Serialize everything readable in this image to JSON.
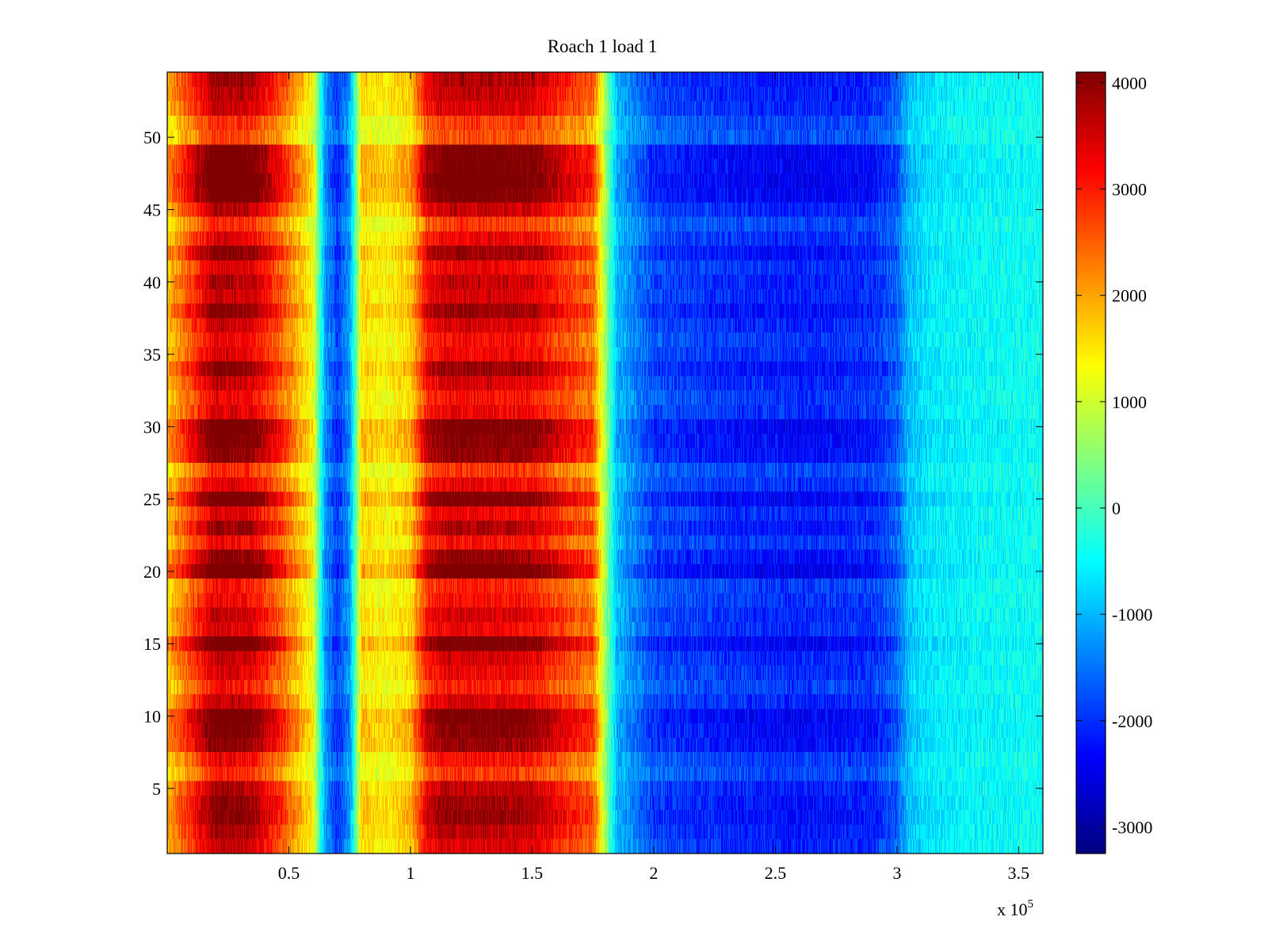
{
  "chart_data": {
    "type": "heatmap",
    "title": "Roach 1 load 1",
    "xlabel": "",
    "ylabel": "",
    "x_exponent_label": "x 10",
    "x_exponent_power": "5",
    "xlim": [
      0,
      3.6
    ],
    "ylim": [
      0.5,
      54.5
    ],
    "x_ticks": [
      0.5,
      1,
      1.5,
      2,
      2.5,
      3,
      3.5
    ],
    "x_tick_labels": [
      "0.5",
      "1",
      "1.5",
      "2",
      "2.5",
      "3",
      "3.5"
    ],
    "y_ticks": [
      5,
      10,
      15,
      20,
      25,
      30,
      35,
      40,
      45,
      50
    ],
    "y_tick_labels": [
      "5",
      "10",
      "15",
      "20",
      "25",
      "30",
      "35",
      "40",
      "45",
      "50"
    ],
    "rows": 54,
    "colorbar": {
      "clim": [
        -3250,
        4100
      ],
      "ticks": [
        -3000,
        -2000,
        -1000,
        0,
        1000,
        2000,
        3000,
        4000
      ],
      "tick_labels": [
        "-3000",
        "-2000",
        "-1000",
        "0",
        "1000",
        "2000",
        "3000",
        "4000"
      ],
      "colormap": "jet"
    },
    "column_profile_x": [
      0.0,
      0.2,
      0.35,
      0.45,
      0.6,
      0.65,
      0.7,
      0.75,
      0.8,
      0.9,
      1.0,
      1.07,
      1.15,
      1.3,
      1.5,
      1.65,
      1.75,
      1.85,
      2.0,
      2.3,
      2.6,
      2.9,
      3.0,
      3.05,
      3.15,
      3.3,
      3.6
    ],
    "column_profile_value": [
      1700,
      3500,
      3300,
      2600,
      1200,
      -1200,
      -1900,
      -1200,
      1500,
      1300,
      1600,
      3000,
      3300,
      3300,
      3200,
      2600,
      2300,
      -1000,
      -1800,
      -2000,
      -2100,
      -2000,
      -1600,
      -900,
      -600,
      -500,
      -400
    ],
    "row_factor": [
      1.05,
      1.12,
      1.2,
      1.18,
      1.1,
      0.85,
      0.95,
      1.2,
      1.25,
      1.3,
      1.05,
      0.9,
      1.0,
      1.05,
      1.3,
      1.0,
      1.05,
      0.95,
      0.9,
      1.35,
      1.2,
      0.95,
      1.15,
      1.0,
      1.3,
      1.0,
      0.85,
      1.2,
      1.25,
      1.3,
      1.0,
      0.95,
      1.05,
      1.2,
      1.0,
      0.95,
      1.05,
      1.2,
      1.05,
      1.1,
      1.0,
      1.2,
      1.0,
      0.85,
      1.1,
      1.3,
      1.35,
      1.3,
      1.3,
      0.8,
      0.85,
      1.05,
      1.1,
      1.15
    ]
  }
}
